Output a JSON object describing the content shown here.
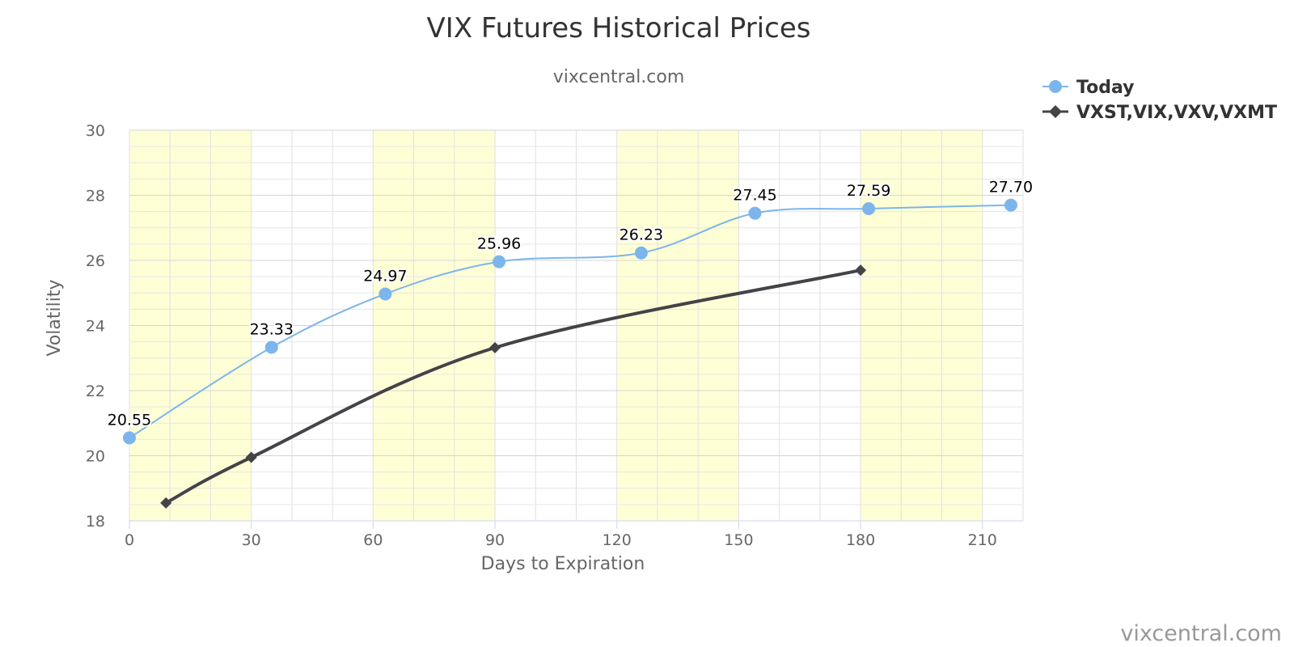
{
  "chart_data": {
    "type": "line",
    "title": "VIX Futures Historical Prices",
    "subtitle": "vixcentral.com",
    "xlabel": "Days to Expiration",
    "ylabel": "Volatility",
    "xlim": [
      0,
      220
    ],
    "ylim": [
      18,
      30
    ],
    "x_ticks": [
      0,
      30,
      60,
      90,
      120,
      150,
      180,
      210
    ],
    "y_ticks": [
      18,
      20,
      22,
      24,
      26,
      28,
      30
    ],
    "grid": true,
    "highlighted_bands": [
      [
        0,
        30
      ],
      [
        60,
        90
      ],
      [
        120,
        150
      ],
      [
        180,
        210
      ]
    ],
    "highlight_color": "#ffffd6",
    "legend_position": "top-right",
    "series": [
      {
        "name": "Today",
        "color": "#7cb5ec",
        "marker": "circle",
        "show_labels": true,
        "points": [
          {
            "x": 0,
            "y": 20.55,
            "label": "20.55"
          },
          {
            "x": 35,
            "y": 23.33,
            "label": "23.33"
          },
          {
            "x": 63,
            "y": 24.97,
            "label": "24.97"
          },
          {
            "x": 91,
            "y": 25.96,
            "label": "25.96"
          },
          {
            "x": 126,
            "y": 26.23,
            "label": "26.23"
          },
          {
            "x": 154,
            "y": 27.45,
            "label": "27.45"
          },
          {
            "x": 182,
            "y": 27.59,
            "label": "27.59"
          },
          {
            "x": 217,
            "y": 27.7,
            "label": "27.70"
          }
        ]
      },
      {
        "name": "VXST,VIX,VXV,VXMT",
        "color": "#434348",
        "marker": "diamond",
        "show_labels": false,
        "points": [
          {
            "x": 9,
            "y": 18.55
          },
          {
            "x": 30,
            "y": 19.95
          },
          {
            "x": 90,
            "y": 23.32
          },
          {
            "x": 180,
            "y": 25.7
          }
        ]
      }
    ]
  },
  "credit": "vixcentral.com"
}
